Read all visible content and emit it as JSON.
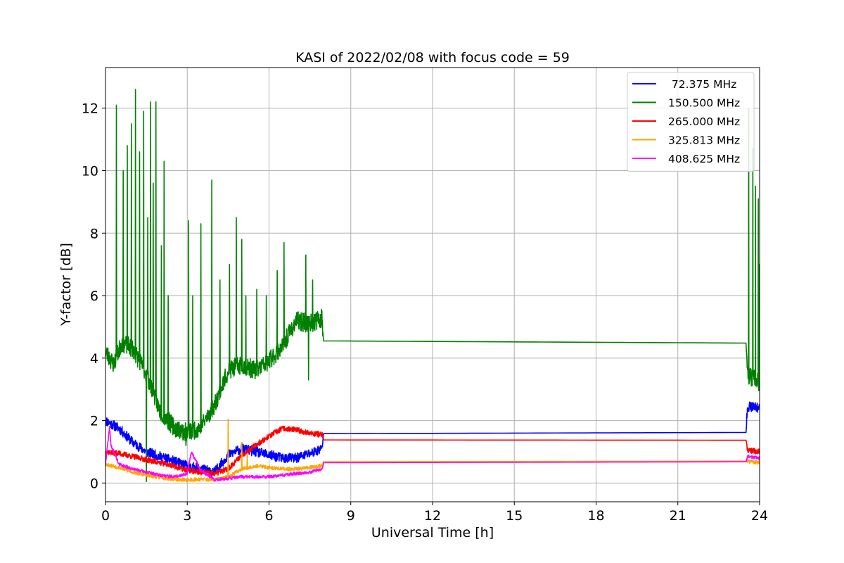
{
  "chart_data": {
    "type": "line",
    "title": "KASI of 2022/02/08 with focus code = 59",
    "xlabel": "Universal Time [h]",
    "ylabel": "Y-factor [dB]",
    "xlim": [
      0,
      24
    ],
    "ylim": [
      -0.6,
      13.3
    ],
    "xticks": [
      0,
      3,
      6,
      9,
      12,
      15,
      18,
      21,
      24
    ],
    "yticks": [
      0,
      2,
      4,
      6,
      8,
      10,
      12
    ],
    "grid": true,
    "legend_position": "top-right",
    "series": [
      {
        "name": " 72.375 MHz",
        "color": "#0000ff",
        "x": [
          0.0,
          0.5,
          1.0,
          1.5,
          2.0,
          2.5,
          3.0,
          3.5,
          4.0,
          4.5,
          5.0,
          5.5,
          6.0,
          6.5,
          7.0,
          7.5,
          7.95,
          8.0,
          23.5,
          23.55,
          24.0
        ],
        "y": [
          2.0,
          1.75,
          1.3,
          1.0,
          0.85,
          0.7,
          0.55,
          0.45,
          0.35,
          0.9,
          1.1,
          1.0,
          0.9,
          0.8,
          0.8,
          0.95,
          1.1,
          1.58,
          1.62,
          2.45,
          2.4
        ],
        "noise": 0.16,
        "seed": 11
      },
      {
        "name": "150.500 MHz",
        "color": "#008000",
        "x": [
          0.0,
          0.3,
          0.6,
          1.0,
          1.5,
          2.0,
          2.5,
          3.0,
          3.5,
          4.0,
          4.5,
          5.0,
          5.5,
          6.0,
          6.5,
          7.0,
          7.5,
          7.95,
          8.0,
          23.5,
          23.55,
          24.0
        ],
        "y": [
          4.2,
          3.8,
          4.5,
          4.3,
          3.5,
          2.3,
          1.8,
          1.6,
          1.8,
          2.5,
          3.6,
          3.8,
          3.6,
          3.9,
          4.4,
          5.2,
          5.1,
          5.3,
          4.55,
          4.48,
          3.5,
          3.2
        ],
        "noise": 0.3,
        "seed": 23,
        "spikes": [
          [
            0.4,
            12.1
          ],
          [
            0.65,
            10.0
          ],
          [
            0.8,
            10.8
          ],
          [
            0.95,
            11.5
          ],
          [
            1.1,
            12.6
          ],
          [
            1.25,
            10.6
          ],
          [
            1.4,
            11.9
          ],
          [
            1.55,
            8.5
          ],
          [
            1.65,
            12.2
          ],
          [
            1.75,
            9.6
          ],
          [
            1.85,
            12.2
          ],
          [
            2.05,
            7.6
          ],
          [
            2.15,
            10.3
          ],
          [
            2.3,
            6.0
          ],
          [
            3.05,
            8.4
          ],
          [
            3.2,
            6.0
          ],
          [
            3.5,
            8.3
          ],
          [
            3.9,
            9.7
          ],
          [
            4.2,
            6.5
          ],
          [
            4.55,
            7.0
          ],
          [
            4.8,
            8.5
          ],
          [
            5.0,
            7.8
          ],
          [
            5.15,
            6.0
          ],
          [
            5.55,
            6.2
          ],
          [
            5.9,
            6.0
          ],
          [
            6.3,
            6.8
          ],
          [
            6.55,
            7.7
          ],
          [
            7.35,
            7.3
          ],
          [
            7.6,
            6.5
          ],
          [
            23.6,
            12.0
          ],
          [
            23.75,
            10.7
          ],
          [
            23.85,
            9.5
          ],
          [
            23.95,
            9.1
          ],
          [
            23.98,
            7.0
          ]
        ],
        "dips": [
          [
            1.5,
            0.05
          ],
          [
            7.45,
            3.3
          ],
          [
            2.95,
            1.2
          ]
        ]
      },
      {
        "name": "265.000 MHz",
        "color": "#ff0000",
        "x": [
          0.0,
          0.5,
          1.0,
          1.5,
          2.0,
          2.5,
          3.0,
          3.5,
          4.0,
          4.5,
          5.0,
          5.5,
          6.0,
          6.5,
          7.0,
          7.5,
          7.95,
          8.0,
          23.5,
          23.55,
          24.0
        ],
        "y": [
          1.0,
          0.95,
          0.85,
          0.75,
          0.65,
          0.55,
          0.4,
          0.35,
          0.3,
          0.45,
          0.9,
          1.2,
          1.5,
          1.75,
          1.7,
          1.6,
          1.55,
          1.38,
          1.37,
          1.05,
          1.0
        ],
        "noise": 0.09,
        "seed": 37
      },
      {
        "name": "325.813 MHz",
        "color": "#ffa500",
        "x": [
          0.0,
          0.5,
          1.0,
          1.5,
          2.0,
          2.5,
          3.0,
          3.5,
          4.0,
          4.5,
          5.0,
          5.5,
          6.0,
          6.5,
          7.0,
          7.5,
          7.95,
          8.0,
          23.5,
          23.55,
          24.0
        ],
        "y": [
          0.6,
          0.5,
          0.35,
          0.25,
          0.18,
          0.12,
          0.1,
          0.12,
          0.1,
          0.2,
          0.45,
          0.55,
          0.5,
          0.45,
          0.45,
          0.5,
          0.55,
          0.68,
          0.7,
          0.7,
          0.65
        ],
        "noise": 0.06,
        "seed": 53,
        "spikes": [
          [
            4.5,
            2.05
          ],
          [
            5.0,
            1.3
          ],
          [
            5.2,
            0.95
          ]
        ]
      },
      {
        "name": "408.625 MHz",
        "color": "#ff00ff",
        "x": [
          0.0,
          0.15,
          0.2,
          0.5,
          1.0,
          1.5,
          2.0,
          2.5,
          3.0,
          3.15,
          3.5,
          4.0,
          4.5,
          5.0,
          5.5,
          6.0,
          6.5,
          7.0,
          7.5,
          7.95,
          8.0,
          23.5,
          23.55,
          24.0
        ],
        "y": [
          0.6,
          1.8,
          1.2,
          0.6,
          0.45,
          0.35,
          0.25,
          0.2,
          0.3,
          1.0,
          0.4,
          0.1,
          0.15,
          0.2,
          0.2,
          0.2,
          0.25,
          0.3,
          0.35,
          0.45,
          0.65,
          0.68,
          0.85,
          0.8
        ],
        "noise": 0.05,
        "seed": 71
      }
    ]
  }
}
